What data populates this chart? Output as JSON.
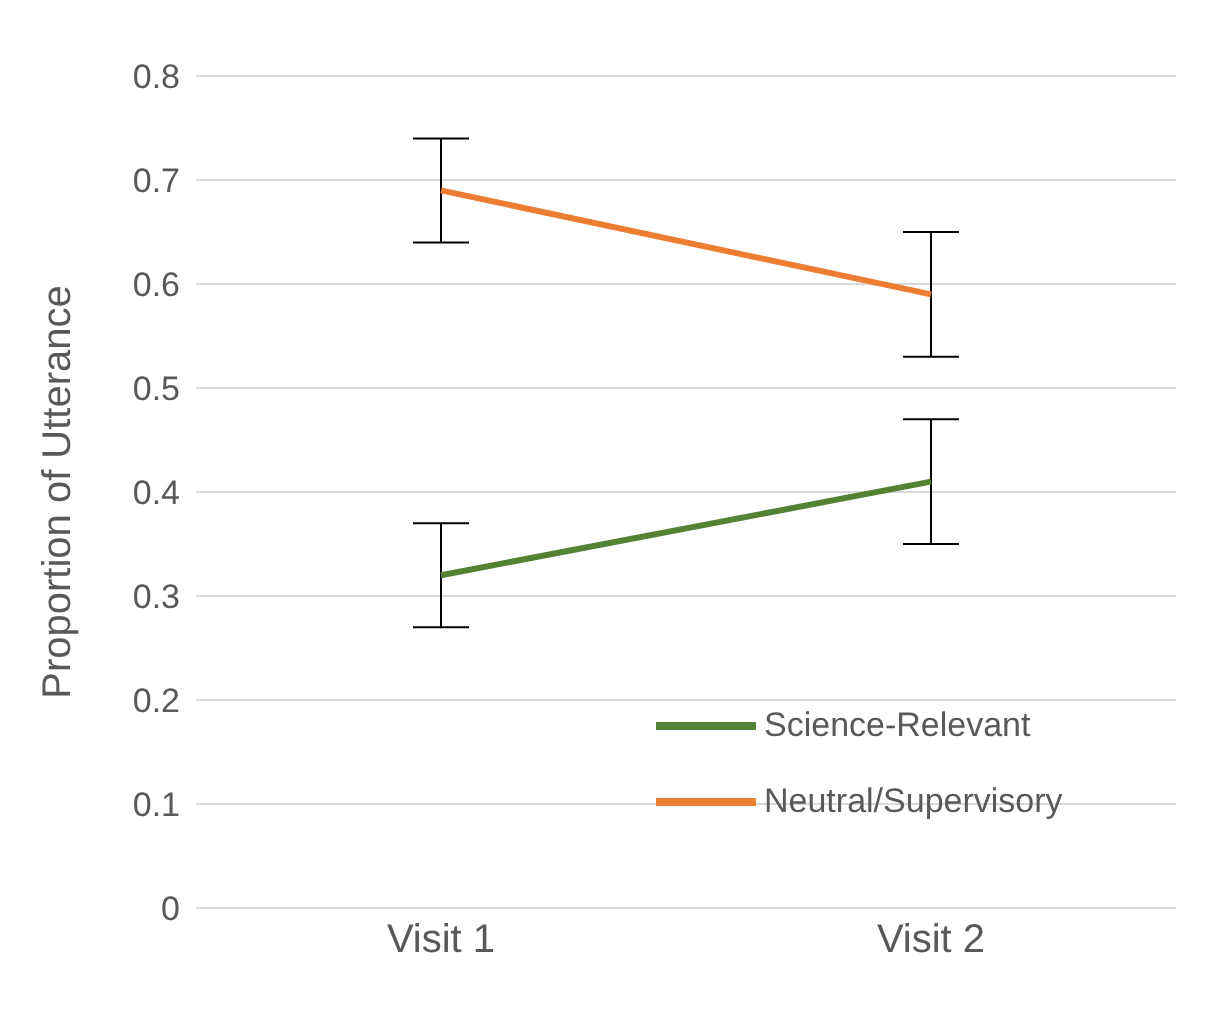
{
  "chart_data": {
    "type": "line",
    "ylabel": "Proportion of Utterance",
    "categories": [
      "Visit 1",
      "Visit 2"
    ],
    "series": [
      {
        "name": "Science-Relevant",
        "color": "#548235",
        "values": [
          0.32,
          0.41
        ],
        "errors": [
          0.05,
          0.06
        ]
      },
      {
        "name": "Neutral/Supervisory",
        "color": "#ed7d31",
        "values": [
          0.69,
          0.59
        ],
        "errors": [
          0.05,
          0.06
        ]
      }
    ],
    "ylim": [
      0,
      0.8
    ],
    "yticks": [
      0,
      0.1,
      0.2,
      0.3,
      0.4,
      0.5,
      0.6,
      0.7,
      0.8
    ],
    "grid": "y",
    "legend": "bottom right",
    "marker": "none",
    "line_style": "solid"
  }
}
